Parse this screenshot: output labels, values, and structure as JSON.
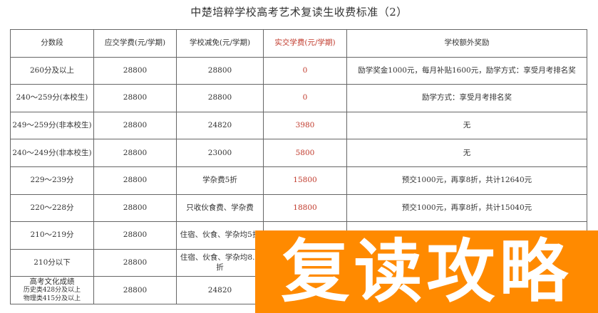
{
  "title": "中楚培粹学校高考艺术复读生收费标准（2）",
  "headers": [
    "分数段",
    "应交学费(元/学期)",
    "学校减免(元/学期)",
    "实交学费(元/学期)",
    "学校额外奖励"
  ],
  "rows": [
    {
      "score": "260分及以上",
      "due": "28800",
      "waiver": "28800",
      "paid": "0",
      "reward": "励学奖金1000元，每月补贴1600元，励学方式：享受月考排名奖"
    },
    {
      "score": "240～259分(本校生)",
      "due": "28800",
      "waiver": "28800",
      "paid": "0",
      "reward": "励学方式：享受月考排名奖"
    },
    {
      "score": "249～259分(非本校生)",
      "due": "28800",
      "waiver": "24820",
      "paid": "3980",
      "reward": "无"
    },
    {
      "score": "240～249分(非本校生)",
      "due": "28800",
      "waiver": "23000",
      "paid": "5800",
      "reward": "无"
    },
    {
      "score": "229～239分",
      "due": "28800",
      "waiver": "学杂费5折",
      "paid": "15800",
      "reward": "预交1000元，再享8折，共计12640元"
    },
    {
      "score": "220～228分",
      "due": "28800",
      "waiver": "只收伙食费、学杂费",
      "paid": "18800",
      "reward": "预交1000元，再享8折，共计15040元"
    },
    {
      "score": "210～219分",
      "due": "28800",
      "waiver": "住宿、伙食、学杂均5折",
      "paid": "",
      "reward": ""
    },
    {
      "score": "210分以下",
      "due": "28800",
      "waiver": "住宿、伙食、学杂均8.5折",
      "paid": "",
      "reward": ""
    }
  ],
  "last_row": {
    "score_title": "高考文化成绩",
    "score_line1": "历史类428分及以上",
    "score_line2": "物理类415分及以上",
    "due": "28800",
    "waiver": "24820"
  },
  "banner": {
    "text": "复读攻略",
    "color": "#ff8a00"
  },
  "colors": {
    "paid_text": "#c0392b"
  }
}
